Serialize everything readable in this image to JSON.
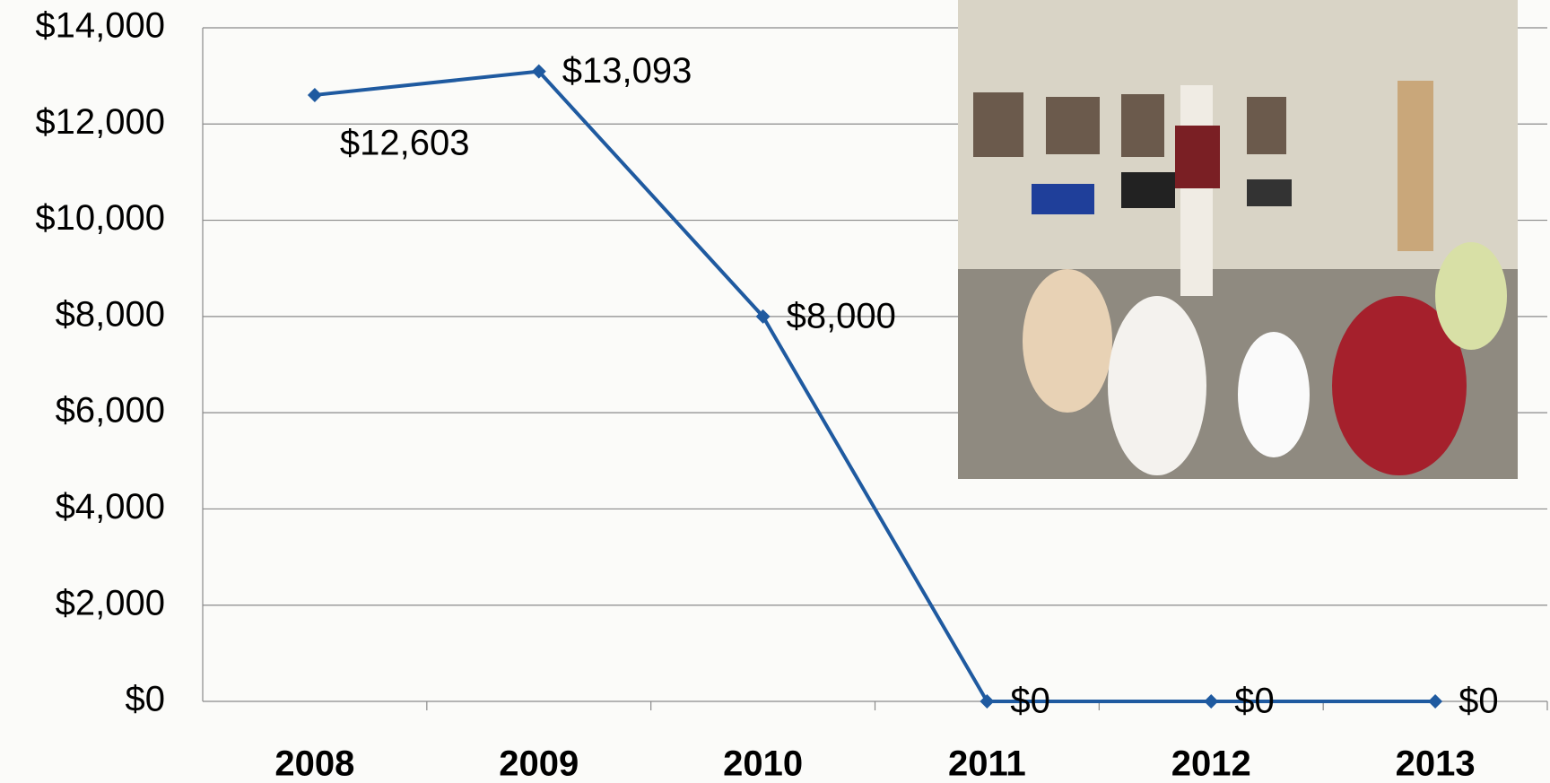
{
  "chart_data": {
    "type": "line",
    "categories": [
      "2008",
      "2009",
      "2010",
      "2011",
      "2012",
      "2013"
    ],
    "series": [
      {
        "color": "#1f5aa0",
        "values": [
          12603,
          13093,
          8000,
          0,
          0,
          0
        ],
        "value_labels": [
          "$12,603",
          "$13,093",
          "$8,000",
          "$0",
          "$0",
          "$0"
        ]
      }
    ],
    "ylim": [
      0,
      14000
    ],
    "yticks": [
      {
        "value": 0,
        "label": "$0"
      },
      {
        "value": 2000,
        "label": "$2,000"
      },
      {
        "value": 4000,
        "label": "$4,000"
      },
      {
        "value": 6000,
        "label": "$6,000"
      },
      {
        "value": 8000,
        "label": "$8,000"
      },
      {
        "value": 10000,
        "label": "$10,000"
      },
      {
        "value": 12000,
        "label": "$12,000"
      },
      {
        "value": 14000,
        "label": "$14,000"
      }
    ],
    "grid": true
  }
}
